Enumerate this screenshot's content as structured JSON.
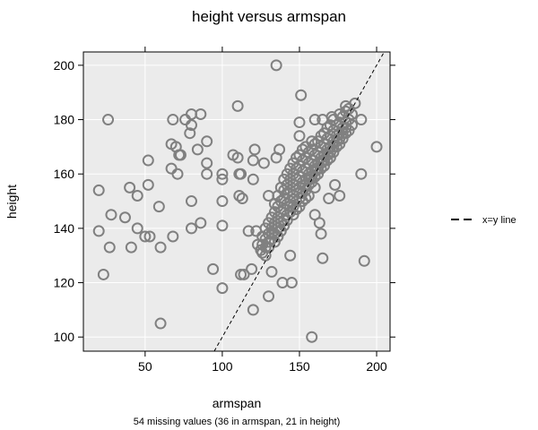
{
  "chart_data": {
    "type": "scatter",
    "title": "height versus armspan",
    "xlabel": "armspan",
    "ylabel": "height",
    "note": "54 missing values (36 in armspan, 21 in height)",
    "xlim": [
      10,
      208.7
    ],
    "ylim": [
      94.8,
      204.9
    ],
    "xticks": [
      50,
      100,
      150,
      200
    ],
    "yticks": [
      100,
      120,
      140,
      160,
      180,
      200
    ],
    "grid": true,
    "background": "#ebebeb",
    "point_color": "#808080",
    "legend": {
      "position": "right",
      "entries": [
        {
          "label": "x=y line",
          "style": "dashed"
        }
      ]
    },
    "reference_line": {
      "label": "x=y line",
      "slope": 1,
      "intercept": 0
    },
    "points": [
      [
        26,
        180
      ],
      [
        20,
        154
      ],
      [
        20,
        139
      ],
      [
        23,
        123
      ],
      [
        28,
        145
      ],
      [
        27,
        133
      ],
      [
        37,
        144
      ],
      [
        40,
        155
      ],
      [
        45,
        152
      ],
      [
        41,
        133
      ],
      [
        45,
        140
      ],
      [
        50,
        137
      ],
      [
        53,
        137
      ],
      [
        52,
        156
      ],
      [
        52,
        165
      ],
      [
        59,
        148
      ],
      [
        60,
        133
      ],
      [
        60,
        105
      ],
      [
        68,
        180
      ],
      [
        76,
        180
      ],
      [
        80,
        182
      ],
      [
        86,
        182
      ],
      [
        80,
        178
      ],
      [
        79,
        175
      ],
      [
        67,
        171
      ],
      [
        70,
        170
      ],
      [
        72,
        167
      ],
      [
        73,
        167
      ],
      [
        84,
        169
      ],
      [
        90,
        172
      ],
      [
        90,
        164
      ],
      [
        90,
        160
      ],
      [
        67,
        162
      ],
      [
        71,
        160
      ],
      [
        80,
        150
      ],
      [
        68,
        137
      ],
      [
        80,
        140
      ],
      [
        86,
        142
      ],
      [
        94,
        125
      ],
      [
        100,
        118
      ],
      [
        100,
        160
      ],
      [
        100,
        158
      ],
      [
        100,
        150
      ],
      [
        100,
        141
      ],
      [
        110,
        185
      ],
      [
        107,
        167
      ],
      [
        110,
        166
      ],
      [
        111,
        160
      ],
      [
        111,
        152
      ],
      [
        112,
        123
      ],
      [
        135,
        200
      ],
      [
        151,
        189
      ],
      [
        121,
        169
      ],
      [
        137,
        169
      ],
      [
        120,
        165
      ],
      [
        127,
        164
      ],
      [
        135,
        166
      ],
      [
        112,
        160
      ],
      [
        120,
        158
      ],
      [
        113,
        151
      ],
      [
        130,
        152
      ],
      [
        117,
        139
      ],
      [
        122,
        139
      ],
      [
        119,
        125
      ],
      [
        114,
        123
      ],
      [
        120,
        110
      ],
      [
        130,
        115
      ],
      [
        132,
        124
      ],
      [
        139,
        120
      ],
      [
        145,
        120
      ],
      [
        144,
        130
      ],
      [
        165,
        129
      ],
      [
        192,
        128
      ],
      [
        158,
        100
      ],
      [
        200,
        170
      ],
      [
        190,
        160
      ],
      [
        150,
        179
      ],
      [
        150,
        174
      ],
      [
        160,
        180
      ],
      [
        165,
        180
      ],
      [
        171,
        181
      ],
      [
        180,
        185
      ],
      [
        186,
        186
      ],
      [
        190,
        180
      ],
      [
        176,
        152
      ],
      [
        169,
        151
      ],
      [
        173,
        156
      ],
      [
        160,
        145
      ],
      [
        163,
        142
      ],
      [
        164,
        138
      ],
      [
        123,
        134
      ],
      [
        125,
        132
      ],
      [
        126,
        131
      ],
      [
        126,
        134
      ],
      [
        126,
        137
      ],
      [
        128,
        133
      ],
      [
        128,
        136
      ],
      [
        128,
        140
      ],
      [
        128,
        130
      ],
      [
        130,
        135
      ],
      [
        130,
        138
      ],
      [
        130,
        142
      ],
      [
        130,
        133
      ],
      [
        132,
        136
      ],
      [
        132,
        140
      ],
      [
        132,
        144
      ],
      [
        132,
        138
      ],
      [
        134,
        138
      ],
      [
        134,
        142
      ],
      [
        134,
        146
      ],
      [
        134,
        135
      ],
      [
        134,
        149
      ],
      [
        136,
        140
      ],
      [
        136,
        144
      ],
      [
        136,
        148
      ],
      [
        136,
        137
      ],
      [
        136,
        152
      ],
      [
        138,
        142
      ],
      [
        138,
        146
      ],
      [
        138,
        150
      ],
      [
        138,
        139
      ],
      [
        138,
        155
      ],
      [
        140,
        143
      ],
      [
        140,
        147
      ],
      [
        140,
        151
      ],
      [
        140,
        141
      ],
      [
        140,
        154
      ],
      [
        140,
        158
      ],
      [
        142,
        145
      ],
      [
        142,
        149
      ],
      [
        142,
        153
      ],
      [
        142,
        143
      ],
      [
        142,
        156
      ],
      [
        142,
        160
      ],
      [
        144,
        146
      ],
      [
        144,
        150
      ],
      [
        144,
        154
      ],
      [
        144,
        148
      ],
      [
        144,
        158
      ],
      [
        144,
        162
      ],
      [
        146,
        148
      ],
      [
        146,
        152
      ],
      [
        146,
        156
      ],
      [
        146,
        145
      ],
      [
        146,
        160
      ],
      [
        146,
        164
      ],
      [
        148,
        150
      ],
      [
        148,
        154
      ],
      [
        148,
        158
      ],
      [
        148,
        147
      ],
      [
        148,
        162
      ],
      [
        148,
        166
      ],
      [
        150,
        151
      ],
      [
        150,
        155
      ],
      [
        150,
        159
      ],
      [
        150,
        153
      ],
      [
        150,
        163
      ],
      [
        150,
        167
      ],
      [
        150,
        148
      ],
      [
        152,
        153
      ],
      [
        152,
        157
      ],
      [
        152,
        161
      ],
      [
        152,
        150
      ],
      [
        152,
        165
      ],
      [
        152,
        169
      ],
      [
        154,
        154
      ],
      [
        154,
        158
      ],
      [
        154,
        162
      ],
      [
        154,
        156
      ],
      [
        154,
        166
      ],
      [
        154,
        170
      ],
      [
        154,
        151
      ],
      [
        156,
        156
      ],
      [
        156,
        160
      ],
      [
        156,
        164
      ],
      [
        156,
        158
      ],
      [
        156,
        168
      ],
      [
        156,
        152
      ],
      [
        158,
        157
      ],
      [
        158,
        161
      ],
      [
        158,
        165
      ],
      [
        158,
        159
      ],
      [
        158,
        169
      ],
      [
        158,
        172
      ],
      [
        160,
        159
      ],
      [
        160,
        163
      ],
      [
        160,
        167
      ],
      [
        160,
        161
      ],
      [
        160,
        171
      ],
      [
        160,
        155
      ],
      [
        162,
        160
      ],
      [
        162,
        164
      ],
      [
        162,
        168
      ],
      [
        162,
        162
      ],
      [
        162,
        172
      ],
      [
        164,
        162
      ],
      [
        164,
        166
      ],
      [
        164,
        170
      ],
      [
        164,
        164
      ],
      [
        164,
        174
      ],
      [
        166,
        163
      ],
      [
        166,
        167
      ],
      [
        166,
        171
      ],
      [
        166,
        165
      ],
      [
        166,
        175
      ],
      [
        168,
        165
      ],
      [
        168,
        169
      ],
      [
        168,
        173
      ],
      [
        168,
        167
      ],
      [
        168,
        177
      ],
      [
        170,
        166
      ],
      [
        170,
        170
      ],
      [
        170,
        174
      ],
      [
        170,
        168
      ],
      [
        170,
        178
      ],
      [
        172,
        168
      ],
      [
        172,
        172
      ],
      [
        172,
        176
      ],
      [
        172,
        170
      ],
      [
        172,
        180
      ],
      [
        174,
        170
      ],
      [
        174,
        174
      ],
      [
        174,
        178
      ],
      [
        174,
        172
      ],
      [
        176,
        171
      ],
      [
        176,
        175
      ],
      [
        176,
        179
      ],
      [
        176,
        173
      ],
      [
        176,
        182
      ],
      [
        178,
        173
      ],
      [
        178,
        177
      ],
      [
        178,
        181
      ],
      [
        178,
        175
      ],
      [
        180,
        175
      ],
      [
        180,
        179
      ],
      [
        180,
        183
      ],
      [
        180,
        177
      ],
      [
        182,
        176
      ],
      [
        182,
        180
      ],
      [
        182,
        184
      ],
      [
        184,
        178
      ],
      [
        184,
        182
      ]
    ]
  }
}
